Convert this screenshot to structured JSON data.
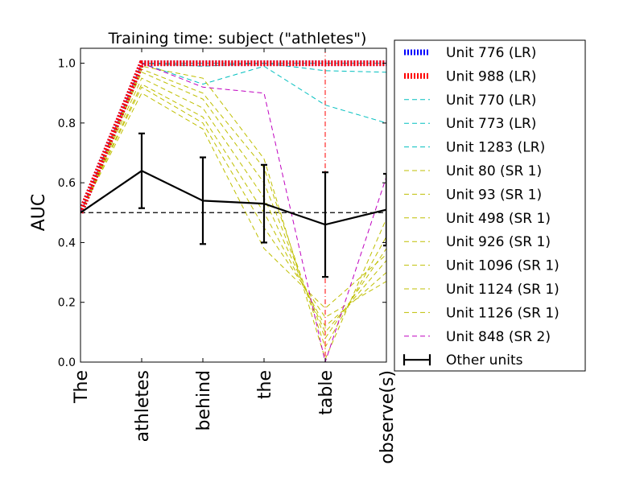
{
  "chart_data": {
    "type": "line",
    "title": "Training time: subject (\"athletes\")",
    "xlabel": "",
    "ylabel": "AUC",
    "categories": [
      "The",
      "athletes",
      "behind",
      "the",
      "table",
      "observe(s)"
    ],
    "ylim": [
      0.0,
      1.05
    ],
    "yticks": [
      "0.0",
      "0.2",
      "0.4",
      "0.6",
      "0.8",
      "1.0"
    ],
    "grid": false,
    "legend_position": "right",
    "reference_line": 0.5,
    "vertical_marker_category": "table",
    "series": [
      {
        "name": "Unit 776 (LR)",
        "color": "#0000ff",
        "style": "dotted",
        "values": [
          0.5,
          1.0,
          1.0,
          1.0,
          1.0,
          1.0
        ]
      },
      {
        "name": "Unit 988 (LR)",
        "color": "#ff0000",
        "style": "dotted",
        "values": [
          0.5,
          1.0,
          1.0,
          1.0,
          1.0,
          1.0
        ]
      },
      {
        "name": "Unit 770 (LR)",
        "color": "#00bfbf",
        "style": "dashed",
        "values": [
          0.5,
          1.0,
          0.93,
          0.99,
          0.86,
          0.8
        ]
      },
      {
        "name": "Unit 773 (LR)",
        "color": "#00bfbf",
        "style": "dashed",
        "values": [
          0.5,
          1.0,
          1.0,
          1.0,
          1.0,
          1.0
        ]
      },
      {
        "name": "Unit 1283 (LR)",
        "color": "#00bfbf",
        "style": "dashed",
        "values": [
          0.5,
          1.0,
          0.99,
          1.0,
          0.975,
          0.97
        ]
      },
      {
        "name": "Unit 80 (SR 1)",
        "color": "#bfbf00",
        "style": "dashed",
        "values": [
          0.5,
          0.99,
          0.95,
          0.68,
          0.01,
          0.48
        ]
      },
      {
        "name": "Unit 93 (SR 1)",
        "color": "#bfbf00",
        "style": "dashed",
        "values": [
          0.5,
          0.98,
          0.9,
          0.65,
          0.05,
          0.42
        ]
      },
      {
        "name": "Unit 498 (SR 1)",
        "color": "#bfbf00",
        "style": "dashed",
        "values": [
          0.5,
          0.97,
          0.88,
          0.6,
          0.08,
          0.38
        ]
      },
      {
        "name": "Unit 926 (SR 1)",
        "color": "#bfbf00",
        "style": "dashed",
        "values": [
          0.5,
          0.95,
          0.85,
          0.55,
          0.1,
          0.34
        ]
      },
      {
        "name": "Unit 1096 (SR 1)",
        "color": "#bfbf00",
        "style": "dashed",
        "values": [
          0.5,
          0.93,
          0.82,
          0.5,
          0.12,
          0.3
        ]
      },
      {
        "name": "Unit 1124 (SR 1)",
        "color": "#bfbf00",
        "style": "dashed",
        "values": [
          0.5,
          0.92,
          0.8,
          0.45,
          0.15,
          0.27
        ]
      },
      {
        "name": "Unit 1126 (SR 1)",
        "color": "#bfbf00",
        "style": "dashed",
        "values": [
          0.5,
          0.9,
          0.78,
          0.38,
          0.18,
          0.36
        ]
      },
      {
        "name": "Unit 848 (SR 2)",
        "color": "#bf00bf",
        "style": "dashed",
        "values": [
          0.5,
          1.0,
          0.92,
          0.9,
          0.0,
          0.62
        ]
      },
      {
        "name": "Other units",
        "color": "#000000",
        "style": "errorbar",
        "values": [
          0.5,
          0.64,
          0.54,
          0.53,
          0.46,
          0.51
        ],
        "errors": [
          0.0,
          0.125,
          0.145,
          0.13,
          0.175,
          0.12
        ]
      }
    ]
  }
}
